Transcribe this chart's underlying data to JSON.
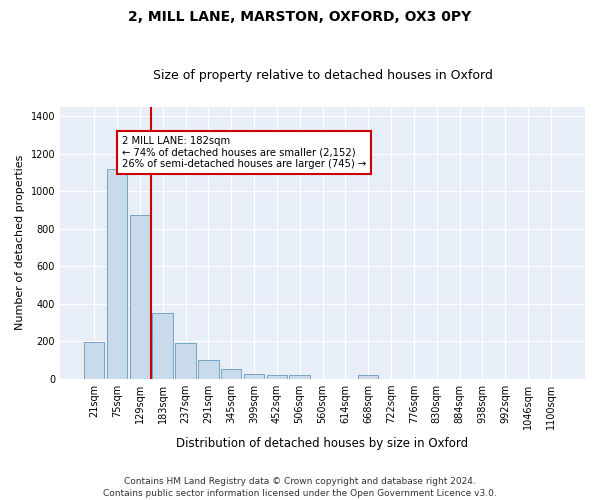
{
  "title": "2, MILL LANE, MARSTON, OXFORD, OX3 0PY",
  "subtitle": "Size of property relative to detached houses in Oxford",
  "xlabel": "Distribution of detached houses by size in Oxford",
  "ylabel": "Number of detached properties",
  "categories": [
    "21sqm",
    "75sqm",
    "129sqm",
    "183sqm",
    "237sqm",
    "291sqm",
    "345sqm",
    "399sqm",
    "452sqm",
    "506sqm",
    "560sqm",
    "614sqm",
    "668sqm",
    "722sqm",
    "776sqm",
    "830sqm",
    "884sqm",
    "938sqm",
    "992sqm",
    "1046sqm",
    "1100sqm"
  ],
  "values": [
    195,
    1120,
    870,
    350,
    190,
    100,
    50,
    25,
    20,
    18,
    0,
    0,
    18,
    0,
    0,
    0,
    0,
    0,
    0,
    0,
    0
  ],
  "bar_color": "#c9daea",
  "bar_edge_color": "#6699bb",
  "vline_color": "#cc0000",
  "annotation_text": "2 MILL LANE: 182sqm\n← 74% of detached houses are smaller (2,152)\n26% of semi-detached houses are larger (745) →",
  "annotation_box_color": "white",
  "annotation_box_edge": "#cc0000",
  "footer": "Contains HM Land Registry data © Crown copyright and database right 2024.\nContains public sector information licensed under the Open Government Licence v3.0.",
  "ylim": [
    0,
    1450
  ],
  "yticks": [
    0,
    200,
    400,
    600,
    800,
    1000,
    1200,
    1400
  ],
  "plot_bg": "#e8eef8",
  "title_fontsize": 10,
  "subtitle_fontsize": 9,
  "footer_fontsize": 6.5,
  "ylabel_fontsize": 8,
  "xlabel_fontsize": 8.5,
  "tick_fontsize": 7
}
